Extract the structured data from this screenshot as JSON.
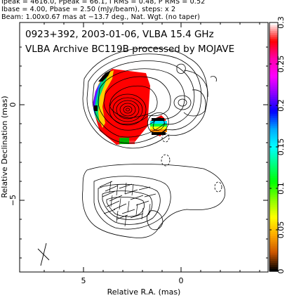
{
  "header": {
    "line1": "Ipeak = 4616.0, Ppeak = 66.1, I RMS = 0.48, P RMS = 0.52",
    "line2": "Ibase = 4.00, Pbase = 2.50 (mJy/beam), steps: x 2",
    "line3": "Beam: 1.00x0.67 mas at −13.7 deg., Nat. Wgt. (no taper)"
  },
  "plot": {
    "title_line1": "0923+392, 2003-01-06, VLBA 15.4 GHz",
    "title_line2": "VLBA Archive BC119B processed by MOJAVE",
    "xlabel": "Relative R.A. (mas)",
    "ylabel": "Relative Declination (mas)",
    "x_ticks": [
      "5",
      "0"
    ],
    "y_ticks": [
      "0",
      "−5"
    ]
  },
  "colorbar": {
    "ticks": [
      "0.3",
      "0.25",
      "0.2",
      "0.15",
      "0.1",
      "0.05",
      "0"
    ],
    "colors": [
      "#ffffff",
      "#ff0000",
      "#ff00aa",
      "#ff00ff",
      "#8800ff",
      "#0000ff",
      "#00aaff",
      "#00ffff",
      "#00ff80",
      "#00ff00",
      "#88ff00",
      "#ffff00",
      "#ffaa00",
      "#cc5500",
      "#000000"
    ]
  }
}
